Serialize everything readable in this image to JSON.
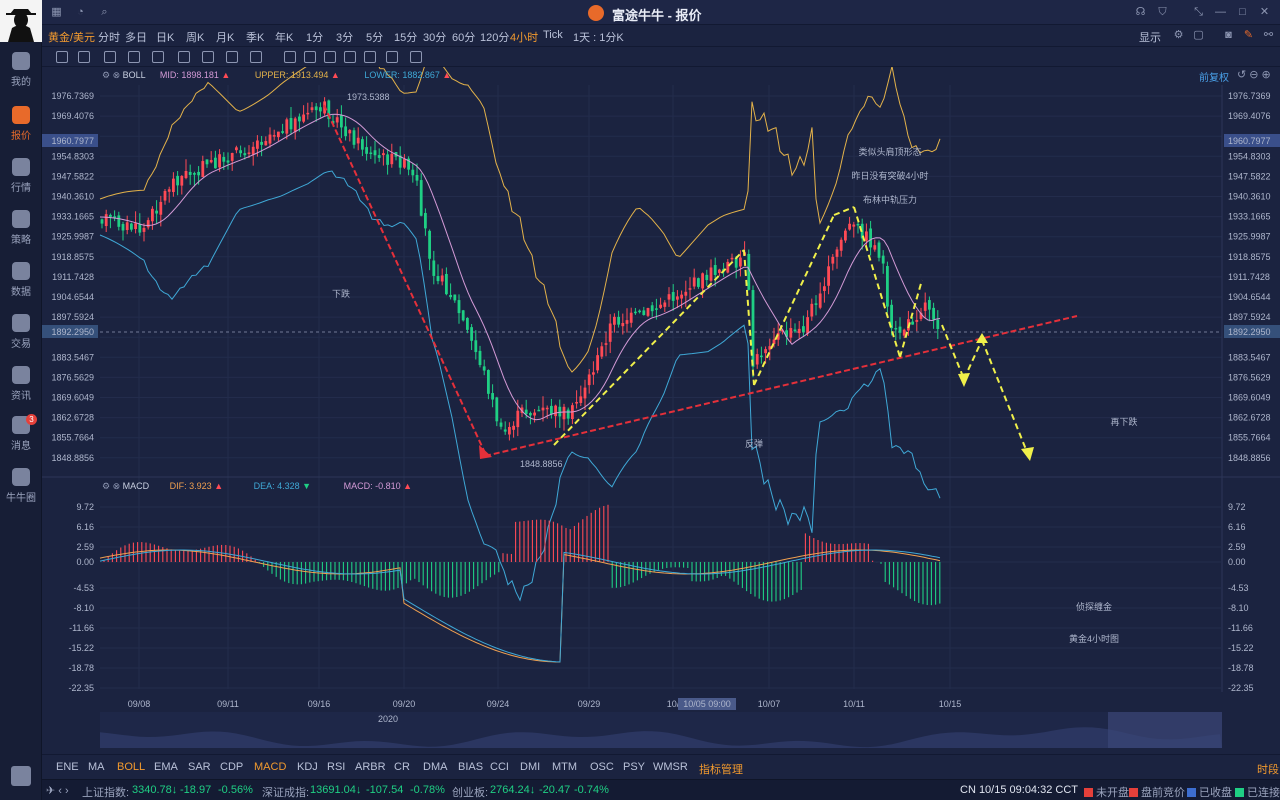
{
  "app": {
    "title": "富途牛牛 - 报价"
  },
  "sidebar": {
    "items": [
      {
        "label": "我的",
        "icon": "user-icon"
      },
      {
        "label": "报价",
        "icon": "chart-bars-icon",
        "active": true
      },
      {
        "label": "行情",
        "icon": "market-icon"
      },
      {
        "label": "策略",
        "icon": "strategy-icon"
      },
      {
        "label": "数据",
        "icon": "database-icon"
      },
      {
        "label": "交易",
        "icon": "trade-icon"
      },
      {
        "label": "资讯",
        "icon": "news-icon"
      },
      {
        "label": "消息",
        "icon": "message-icon",
        "badge": "3"
      },
      {
        "label": "牛牛圈",
        "icon": "community-icon"
      }
    ]
  },
  "periodbar": {
    "symbol": "黄金/美元",
    "periods": [
      "分时",
      "多日",
      "日K",
      "周K",
      "月K",
      "季K",
      "年K",
      "1分",
      "3分",
      "5分",
      "15分",
      "30分",
      "60分",
      "120分",
      "4小时",
      "Tick",
      "1天 : 1分K"
    ],
    "active": "4小时",
    "display_label": "显示"
  },
  "legend_main": {
    "name": "BOLL",
    "mid": "MID: 1898.181",
    "upper": "UPPER: 1913.494",
    "lower": "LOWER: 1882.867",
    "adjust": "前复权"
  },
  "legend_macd": {
    "name": "MACD",
    "dif": "DIF: 3.923",
    "dea": "DEA: 4.328",
    "macd": "MACD: -0.810"
  },
  "colors": {
    "up": "#ff4a55",
    "down": "#1fcf84",
    "mid": "#d39ad6",
    "upper": "#e3b24a",
    "lower": "#3fa8d6",
    "dif": "#f0a050",
    "dea": "#3fa8d6"
  },
  "chart_data": {
    "type": "candlestick",
    "price_axis": [
      "1976.7369",
      "1969.4076",
      "1960.7977",
      "1954.8303",
      "1947.5822",
      "1940.3610",
      "1933.1665",
      "1925.9987",
      "1918.8575",
      "1911.7428",
      "1904.6544",
      "1897.5924",
      "1892.2950",
      "1883.5467",
      "1876.5629",
      "1869.6049",
      "1862.6728",
      "1855.7664",
      "1848.8856"
    ],
    "price_tag_high": "1960.7977",
    "price_tag_current": "1892.2950",
    "high_label": "1973.5388",
    "low_label": "1848.8856",
    "macd_axis": [
      "9.72",
      "6.16",
      "2.59",
      "0.00",
      "-4.53",
      "-8.10",
      "-11.66",
      "-15.22",
      "-18.78",
      "-22.35"
    ],
    "x_ticks": [
      "09/08",
      "09/11",
      "09/16",
      "09/20",
      "09/24",
      "09/29",
      "10/",
      "10/07",
      "10/11",
      "10/15"
    ],
    "crosshair_date": "10/05 09:00",
    "overview_year": "2020",
    "annotations": [
      "下跌",
      "反弹",
      "类似头肩顶形态",
      "昨日没有突破4小时",
      "布林中轨压力",
      "再下跌",
      "侦探缠金",
      "黄金4小时图"
    ]
  },
  "indicators": {
    "items": [
      "ENE",
      "MA",
      "BOLL",
      "EMA",
      "SAR",
      "CDP",
      "MACD",
      "KDJ",
      "RSI",
      "ARBR",
      "CR",
      "DMA",
      "BIAS",
      "CCI",
      "DMI",
      "MTM",
      "OSC",
      "PSY",
      "WMSR",
      "指标管理"
    ],
    "active": [
      "BOLL",
      "MACD",
      "指标管理"
    ],
    "right_label": "时段"
  },
  "statusbar": {
    "sh_name": "上证指数:",
    "sh_value": "3340.78↓",
    "sh_change": "-18.97",
    "sh_pct": "-0.56%",
    "sz_name": "深证成指:",
    "sz_value": "13691.04↓",
    "sz_change": "-107.54",
    "sz_pct": "-0.78%",
    "cy_name": "创业板:",
    "cy_value": "2764.24↓",
    "cy_change": "-20.47",
    "cy_pct": "-0.74%",
    "clock": "CN 10/15 09:04:32 CCT",
    "market_states": [
      "未开盘",
      "盘前竞价",
      "已收盘",
      "已连接"
    ]
  }
}
